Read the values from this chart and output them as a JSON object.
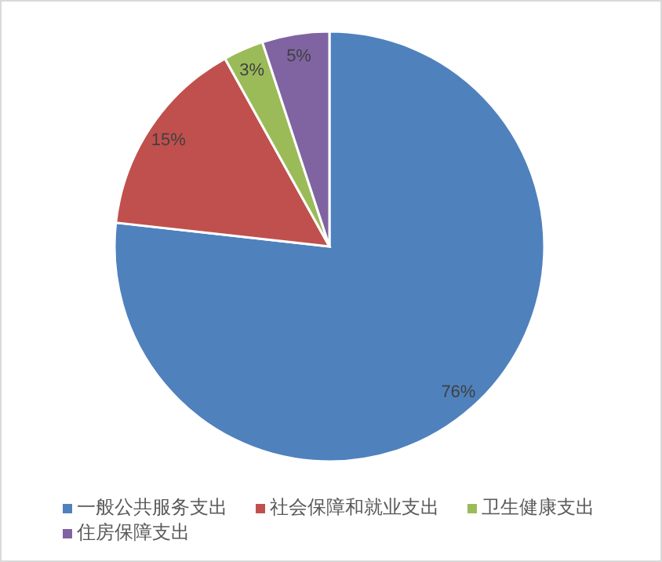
{
  "chart_data": {
    "type": "pie",
    "categories": [
      "一般公共服务支出",
      "社会保障和就业支出",
      "卫生健康支出",
      "住房保障支出"
    ],
    "values": [
      76,
      15,
      3,
      5
    ],
    "colors": [
      "#4f81bd",
      "#c0504d",
      "#9bbb59",
      "#8064a2"
    ],
    "value_labels": [
      "76%",
      "15%",
      "3%",
      "5%"
    ],
    "legend": "bottom"
  }
}
